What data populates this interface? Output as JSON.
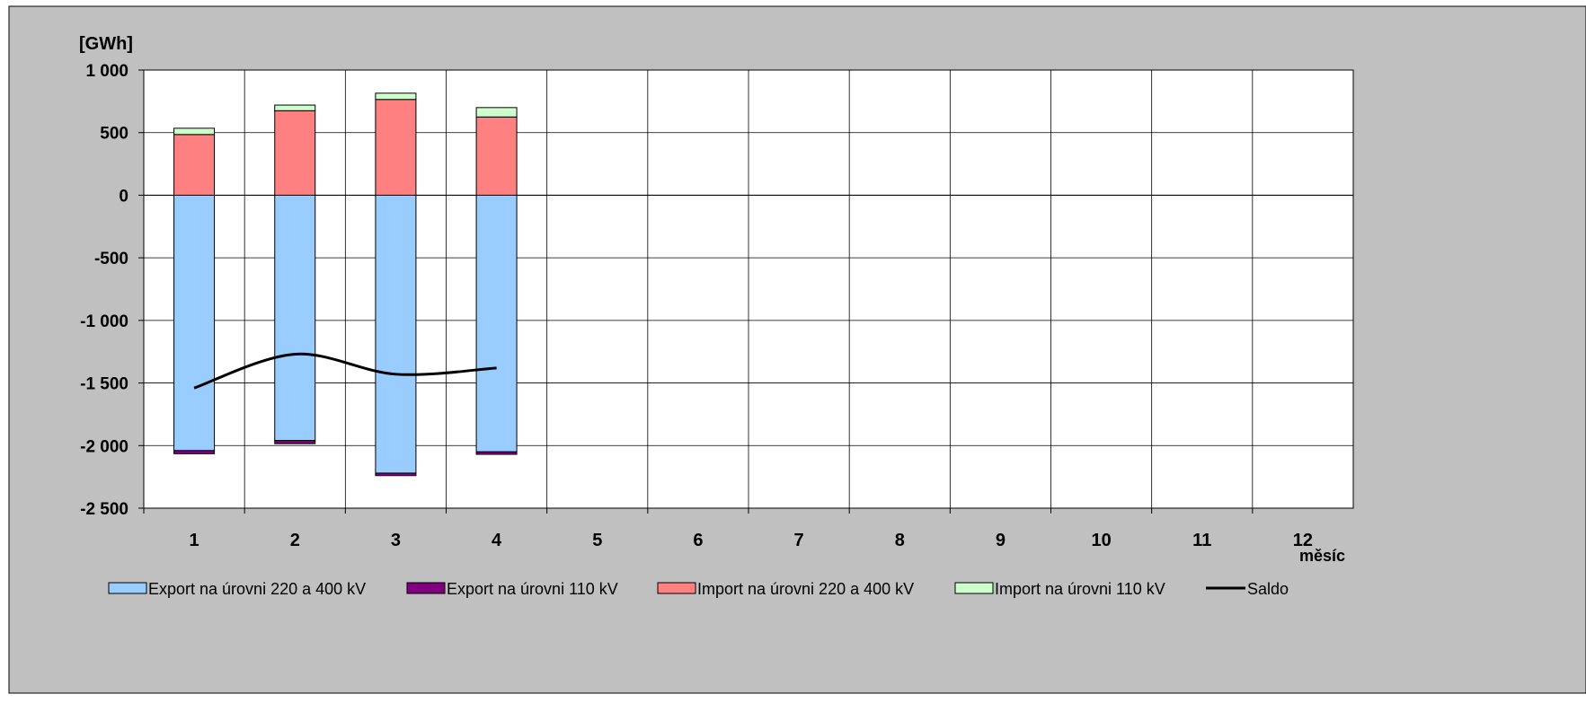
{
  "chart_data": {
    "type": "bar",
    "stacked": true,
    "ylabel": "[GWh]",
    "xlabel": "měsíc",
    "ylim": [
      -2500,
      1000
    ],
    "yticks": [
      1000,
      500,
      0,
      -500,
      -1000,
      -1500,
      -2000,
      -2500
    ],
    "ytick_labels": [
      "1 000",
      "500",
      "0",
      "-500",
      "-1 000",
      "-1 500",
      "-2 000",
      "-2 500"
    ],
    "categories": [
      "1",
      "2",
      "3",
      "4",
      "5",
      "6",
      "7",
      "8",
      "9",
      "10",
      "11",
      "12"
    ],
    "grid": true,
    "legend_position": "bottom",
    "series": [
      {
        "name": "Export na úrovni 220 a 400 kV",
        "kind": "bar",
        "color": "#99CCFF",
        "values": [
          -2040,
          -1960,
          -2220,
          -2050,
          null,
          null,
          null,
          null,
          null,
          null,
          null,
          null
        ]
      },
      {
        "name": "Export na úrovni 110 kV",
        "kind": "bar",
        "color": "#800080",
        "values": [
          -25,
          -25,
          -20,
          -20,
          null,
          null,
          null,
          null,
          null,
          null,
          null,
          null
        ]
      },
      {
        "name": "Import na úrovni 220 a 400 kV",
        "kind": "bar",
        "color": "#FF8080",
        "values": [
          485,
          675,
          765,
          625,
          null,
          null,
          null,
          null,
          null,
          null,
          null,
          null
        ]
      },
      {
        "name": "Import na úrovni 110 kV",
        "kind": "bar",
        "color": "#CCFFCC",
        "values": [
          50,
          45,
          50,
          75,
          null,
          null,
          null,
          null,
          null,
          null,
          null,
          null
        ]
      },
      {
        "name": "Saldo",
        "kind": "line",
        "color": "#000000",
        "values": [
          -1540,
          -1270,
          -1430,
          -1380,
          null,
          null,
          null,
          null,
          null,
          null,
          null,
          null
        ]
      }
    ]
  },
  "colors": {
    "plot_area_background": "#C0C0C0",
    "plot_background": "#FFFFFF",
    "gridline": "#000000"
  }
}
